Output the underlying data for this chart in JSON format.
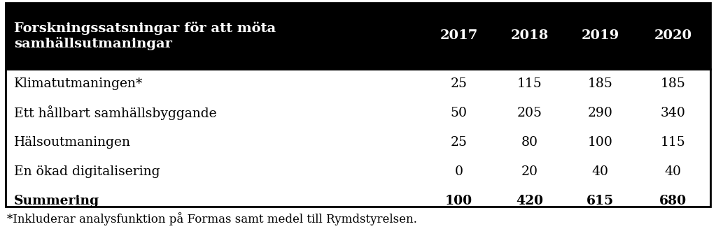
{
  "header_title": "Forskningssatsningar för att möta\nsamhällsutmaningar",
  "years": [
    "2017",
    "2018",
    "2019",
    "2020"
  ],
  "rows": [
    {
      "label": "Klimatutmaningen*",
      "values": [
        "25",
        "115",
        "185",
        "185"
      ],
      "bold": false
    },
    {
      "label": "Ett hållbart samhällsbyggande",
      "values": [
        "50",
        "205",
        "290",
        "340"
      ],
      "bold": false
    },
    {
      "label": "Hälsoutmaningen",
      "values": [
        "25",
        "80",
        "100",
        "115"
      ],
      "bold": false
    },
    {
      "label": "En ökad digitalisering",
      "values": [
        "0",
        "20",
        "40",
        "40"
      ],
      "bold": false
    },
    {
      "label": "Summering",
      "values": [
        "100",
        "420",
        "615",
        "680"
      ],
      "bold": true
    }
  ],
  "footnote": "*Inkluderar analysfunktion på Formas samt medel till Rymdstyrelsen.",
  "header_bg": "#000000",
  "header_text_color": "#ffffff",
  "body_bg": "#ffffff",
  "body_text_color": "#000000",
  "border_color": "#000000",
  "header_fontsize": 14.0,
  "body_fontsize": 13.5,
  "footnote_fontsize": 12.0
}
